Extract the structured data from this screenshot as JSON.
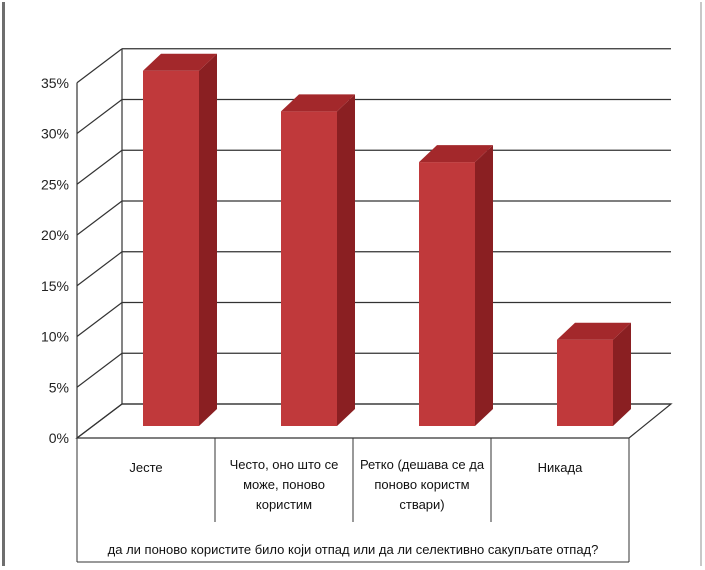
{
  "chart_data": {
    "type": "bar",
    "title": "",
    "xlabel": "да ли поново користите било који отпад или да ли селективно сакупљате отпад?",
    "ylabel": "",
    "ylim": [
      0,
      35
    ],
    "yticks": [
      "0%",
      "5%",
      "10%",
      "15%",
      "20%",
      "25%",
      "30%",
      "35%"
    ],
    "categories": [
      [
        "Јесте"
      ],
      [
        "Често, оно што се",
        "може, поново",
        "користим"
      ],
      [
        "Ретко (дешава се да",
        "поново користм",
        "ствари)"
      ],
      [
        "Никада"
      ]
    ],
    "values": [
      35,
      31,
      26,
      8.5
    ],
    "unit": "%",
    "grid": true,
    "legend": "none",
    "style": "3d-column",
    "colors": {
      "bar_front": "#c0393b",
      "bar_side": "#8a1f22",
      "bar_top": "#a3282b",
      "grid": "#333333"
    }
  }
}
